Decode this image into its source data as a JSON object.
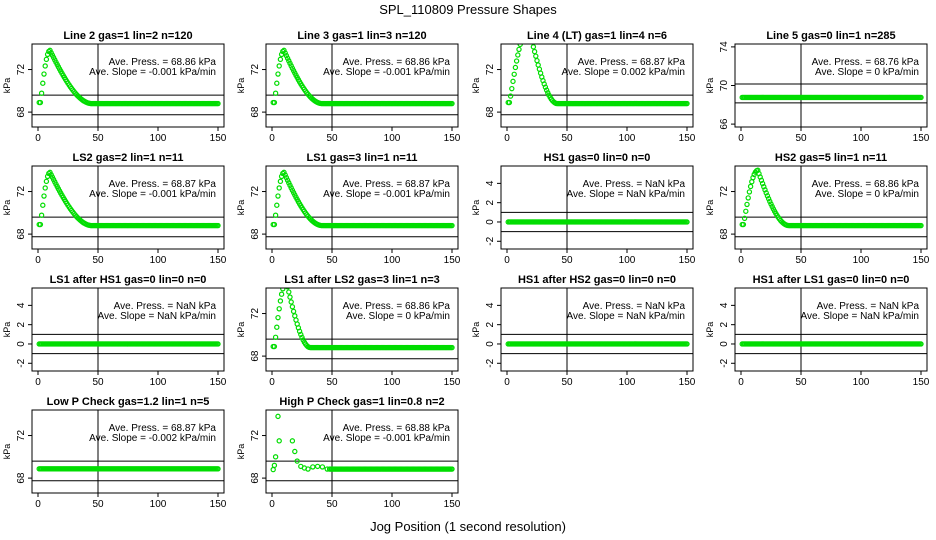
{
  "figure": {
    "title": "SPL_110809  Pressure Shapes",
    "xlabel": "Jog Position (1 second resolution)"
  },
  "colors": {
    "points": "#00dd00",
    "axes": "#000000"
  },
  "chart_data": [
    {
      "type": "scatter",
      "title": "Line 2 gas=1 lin=2 n=120",
      "ylabel": "kPa",
      "xlim": [
        0,
        150
      ],
      "xticks": [
        0,
        50,
        100,
        150
      ],
      "ylim": [
        66.6,
        74.4
      ],
      "yticks": [
        "68",
        "72"
      ],
      "ytick_values": [
        68,
        72
      ],
      "hlines": [
        67.75,
        69.6
      ],
      "vline": 50,
      "annotation": [
        "Ave. Press. = 68.86 kPa",
        "Ave. Slope = -0.001 kPa/min"
      ],
      "shape": "peak",
      "peak_x": 10,
      "peak_y": 73.8,
      "base_y": 68.8,
      "rise_start": 2,
      "fall_end": 45
    },
    {
      "type": "scatter",
      "title": "Line 3 gas=1 lin=3 n=120",
      "ylabel": "kPa",
      "xlim": [
        0,
        150
      ],
      "xticks": [
        0,
        50,
        100,
        150
      ],
      "ylim": [
        66.6,
        74.4
      ],
      "yticks": [
        "68",
        "72"
      ],
      "ytick_values": [
        68,
        72
      ],
      "hlines": [
        67.75,
        69.6
      ],
      "vline": 50,
      "annotation": [
        "Ave. Press. = 68.86 kPa",
        "Ave. Slope = -0.001 kPa/min"
      ],
      "shape": "peak",
      "peak_x": 10,
      "peak_y": 73.8,
      "base_y": 68.8,
      "rise_start": 2,
      "fall_end": 42
    },
    {
      "type": "scatter",
      "title": "Line 4 (LT) gas=1 lin=4 n=6",
      "ylabel": "kPa",
      "xlim": [
        0,
        150
      ],
      "xticks": [
        0,
        50,
        100,
        150
      ],
      "ylim": [
        66.6,
        74.4
      ],
      "yticks": [
        "68",
        "72"
      ],
      "ytick_values": [
        68,
        72
      ],
      "hlines": [
        67.75,
        69.6
      ],
      "vline": 50,
      "annotation": [
        "Ave. Press. = 68.87 kPa",
        "Ave. Slope = 0.002 kPa/min"
      ],
      "shape": "peak",
      "peak_x": 18,
      "peak_y": 76,
      "base_y": 68.8,
      "rise_start": 2,
      "fall_end": 42
    },
    {
      "type": "scatter",
      "title": "Line 5 gas=0 lin=1 n=285",
      "ylabel": "kPa",
      "xlim": [
        0,
        150
      ],
      "xticks": [
        0,
        50,
        100,
        150
      ],
      "ylim": [
        65.7,
        74.3
      ],
      "yticks": [
        "66",
        "70",
        "74"
      ],
      "ytick_values": [
        66,
        70,
        74
      ],
      "hlines": [
        68.2,
        70.15
      ],
      "vline": 50,
      "annotation": [
        "Ave. Press. = 68.76 kPa",
        "Ave. Slope = 0 kPa/min"
      ],
      "shape": "flat",
      "base_y": 68.76
    },
    {
      "type": "scatter",
      "title": "LS2 gas=2 lin=1 n=11",
      "ylabel": "kPa",
      "xlim": [
        0,
        150
      ],
      "xticks": [
        0,
        50,
        100,
        150
      ],
      "ylim": [
        66.6,
        74.4
      ],
      "yticks": [
        "68",
        "72"
      ],
      "ytick_values": [
        68,
        72
      ],
      "hlines": [
        67.75,
        69.6
      ],
      "vline": 50,
      "annotation": [
        "Ave. Press. = 68.87 kPa",
        "Ave. Slope = -0.001 kPa/min"
      ],
      "shape": "peak",
      "peak_x": 10,
      "peak_y": 73.8,
      "base_y": 68.8,
      "rise_start": 2,
      "fall_end": 45
    },
    {
      "type": "scatter",
      "title": "LS1 gas=3 lin=1 n=11",
      "ylabel": "kPa",
      "xlim": [
        0,
        150
      ],
      "xticks": [
        0,
        50,
        100,
        150
      ],
      "ylim": [
        66.6,
        74.4
      ],
      "yticks": [
        "68",
        "72"
      ],
      "ytick_values": [
        68,
        72
      ],
      "hlines": [
        67.75,
        69.6
      ],
      "vline": 50,
      "annotation": [
        "Ave. Press. = 68.87 kPa",
        "Ave. Slope = -0.001 kPa/min"
      ],
      "shape": "peak",
      "peak_x": 10,
      "peak_y": 73.8,
      "base_y": 68.8,
      "rise_start": 2,
      "fall_end": 42
    },
    {
      "type": "scatter",
      "title": "HS1 gas=0 lin=0 n=0",
      "ylabel": "kPa",
      "xlim": [
        0,
        150
      ],
      "xticks": [
        0,
        50,
        100,
        150
      ],
      "ylim": [
        -2.8,
        5.8
      ],
      "yticks": [
        "-2",
        "0",
        "2",
        "4"
      ],
      "ytick_values": [
        -2,
        0,
        2,
        4
      ],
      "hlines": [
        -1,
        1
      ],
      "vline": 50,
      "annotation": [
        "Ave. Press. = NaN kPa",
        "Ave. Slope = NaN kPa/min"
      ],
      "shape": "flat",
      "base_y": 0
    },
    {
      "type": "scatter",
      "title": "HS2 gas=5 lin=1 n=11",
      "ylabel": "kPa",
      "xlim": [
        0,
        150
      ],
      "xticks": [
        0,
        50,
        100,
        150
      ],
      "ylim": [
        66.6,
        74.4
      ],
      "yticks": [
        "68",
        "72"
      ],
      "ytick_values": [
        68,
        72
      ],
      "hlines": [
        67.75,
        69.6
      ],
      "vline": 50,
      "annotation": [
        "Ave. Press. = 68.86 kPa",
        "Ave. Slope = 0 kPa/min"
      ],
      "shape": "peak",
      "peak_x": 14,
      "peak_y": 74,
      "base_y": 68.8,
      "rise_start": 2,
      "fall_end": 40
    },
    {
      "type": "scatter",
      "title": "LS1 after HS1 gas=0 lin=0 n=0",
      "ylabel": "kPa",
      "xlim": [
        0,
        150
      ],
      "xticks": [
        0,
        50,
        100,
        150
      ],
      "ylim": [
        -2.8,
        5.8
      ],
      "yticks": [
        "-2",
        "0",
        "2",
        "4"
      ],
      "ytick_values": [
        -2,
        0,
        2,
        4
      ],
      "hlines": [
        -1,
        1
      ],
      "vline": 50,
      "annotation": [
        "Ave. Press. = NaN kPa",
        "Ave. Slope = NaN kPa/min"
      ],
      "shape": "flat",
      "base_y": 0
    },
    {
      "type": "scatter",
      "title": "LS1 after LS2 gas=3 lin=1 n=3",
      "ylabel": "kPa",
      "xlim": [
        0,
        150
      ],
      "xticks": [
        0,
        50,
        100,
        150
      ],
      "ylim": [
        66.6,
        74.4
      ],
      "yticks": [
        "68",
        "72"
      ],
      "ytick_values": [
        68,
        72
      ],
      "hlines": [
        67.75,
        69.6
      ],
      "vline": 50,
      "annotation": [
        "Ave. Press. = 68.86 kPa",
        "Ave. Slope = 0 kPa/min"
      ],
      "shape": "peak",
      "peak_x": 12,
      "peak_y": 75,
      "base_y": 68.8,
      "rise_start": 2,
      "fall_end": 32
    },
    {
      "type": "scatter",
      "title": "HS1 after HS2 gas=0 lin=0 n=0",
      "ylabel": "kPa",
      "xlim": [
        0,
        150
      ],
      "xticks": [
        0,
        50,
        100,
        150
      ],
      "ylim": [
        -2.8,
        5.8
      ],
      "yticks": [
        "-2",
        "0",
        "2",
        "4"
      ],
      "ytick_values": [
        -2,
        0,
        2,
        4
      ],
      "hlines": [
        -1,
        1
      ],
      "vline": 50,
      "annotation": [
        "Ave. Press. = NaN kPa",
        "Ave. Slope = NaN kPa/min"
      ],
      "shape": "flat",
      "base_y": 0
    },
    {
      "type": "scatter",
      "title": "HS1 after LS1 gas=0 lin=0 n=0",
      "ylabel": "kPa",
      "xlim": [
        0,
        150
      ],
      "xticks": [
        0,
        50,
        100,
        150
      ],
      "ylim": [
        -2.8,
        5.8
      ],
      "yticks": [
        "-2",
        "0",
        "2",
        "4"
      ],
      "ytick_values": [
        -2,
        0,
        2,
        4
      ],
      "hlines": [
        -1,
        1
      ],
      "vline": 50,
      "annotation": [
        "Ave. Press. = NaN kPa",
        "Ave. Slope = NaN kPa/min"
      ],
      "shape": "flat",
      "base_y": 0
    },
    {
      "type": "scatter",
      "title": "Low P Check gas=1.2 lin=1 n=5",
      "ylabel": "kPa",
      "xlim": [
        0,
        150
      ],
      "xticks": [
        0,
        50,
        100,
        150
      ],
      "ylim": [
        66.6,
        74.4
      ],
      "yticks": [
        "68",
        "72"
      ],
      "ytick_values": [
        68,
        72
      ],
      "hlines": [
        67.75,
        69.6
      ],
      "vline": 50,
      "annotation": [
        "Ave. Press. = 68.87 kPa",
        "Ave. Slope = -0.002 kPa/min"
      ],
      "shape": "flat",
      "base_y": 68.87
    },
    {
      "type": "scatter",
      "title": "High P Check gas=1 lin=0.8 n=2",
      "ylabel": "kPa",
      "xlim": [
        0,
        150
      ],
      "xticks": [
        0,
        50,
        100,
        150
      ],
      "ylim": [
        66.6,
        74.4
      ],
      "yticks": [
        "68",
        "72"
      ],
      "ytick_values": [
        68,
        72
      ],
      "hlines": [
        67.75,
        69.6
      ],
      "vline": 50,
      "annotation": [
        "Ave. Press. = 68.88 kPa",
        "Ave. Slope = -0.001 kPa/min"
      ],
      "shape": "points",
      "points": [
        [
          1,
          68.8
        ],
        [
          2,
          69.2
        ],
        [
          3,
          70
        ],
        [
          5,
          73.8
        ],
        [
          6,
          71.5
        ],
        [
          17,
          71.5
        ],
        [
          19,
          70.5
        ],
        [
          21,
          69.6
        ],
        [
          24,
          69.1
        ],
        [
          27,
          68.95
        ],
        [
          30,
          68.85
        ],
        [
          34,
          69.05
        ],
        [
          38,
          69.1
        ],
        [
          42,
          69.05
        ],
        [
          46,
          68.85
        ]
      ],
      "base_y": 68.85,
      "tail_start": 48
    }
  ]
}
